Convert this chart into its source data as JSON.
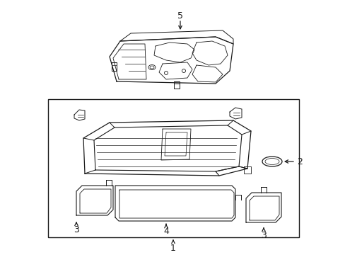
{
  "background_color": "#ffffff",
  "line_color": "#1a1a1a",
  "fig_w": 4.89,
  "fig_h": 3.6,
  "dpi": 100
}
